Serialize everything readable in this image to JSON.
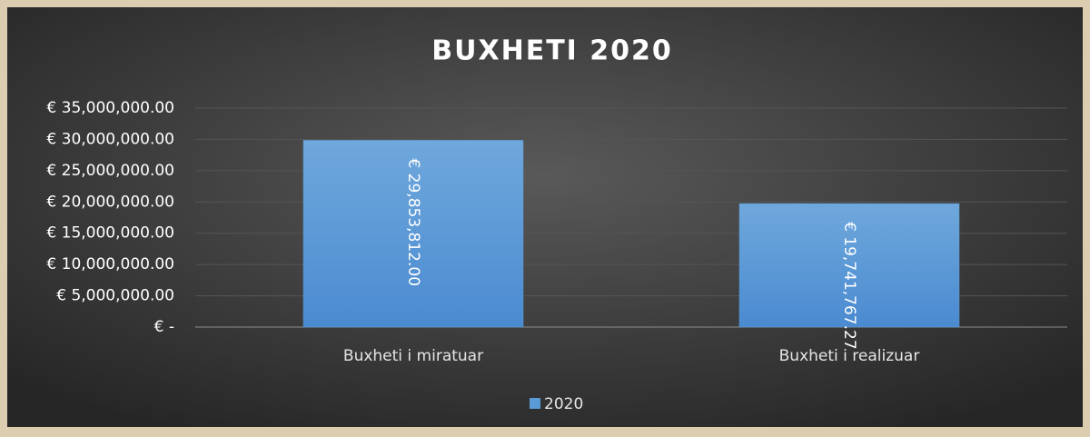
{
  "chart_data": {
    "type": "bar",
    "title": "BUXHETI 2020",
    "categories": [
      "Buxheti i miratuar",
      "Buxheti i realizuar"
    ],
    "series": [
      {
        "name": "2020",
        "color": "#5b9bd5",
        "values": [
          29853812,
          19741767.27
        ],
        "value_labels": [
          "€ 29,853,812.00",
          "€ 19,741,767.27"
        ]
      }
    ],
    "ylim": [
      0,
      35000000
    ],
    "yticks": [
      {
        "value": 0,
        "label": "€ -"
      },
      {
        "value": 5000000,
        "label": "€ 5,000,000.00"
      },
      {
        "value": 10000000,
        "label": "€ 10,000,000.00"
      },
      {
        "value": 15000000,
        "label": "€ 15,000,000.00"
      },
      {
        "value": 20000000,
        "label": "€ 20,000,000.00"
      },
      {
        "value": 25000000,
        "label": "€ 25,000,000.00"
      },
      {
        "value": 30000000,
        "label": "€ 30,000,000.00"
      },
      {
        "value": 35000000,
        "label": "€ 35,000,000.00"
      }
    ],
    "grid": true,
    "legend": "bottom"
  }
}
